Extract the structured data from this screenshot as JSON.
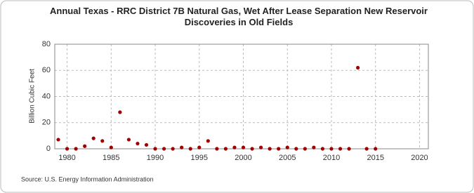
{
  "chart_data": {
    "type": "scatter",
    "title": "Annual Texas - RRC District 7B Natural Gas, Wet After Lease Separation New Reservoir Discoveries in Old Fields",
    "y_label": "Billion Cubic Feet",
    "source": "Source: U.S. Energy Information Administration",
    "x": [
      1979,
      1980,
      1981,
      1982,
      1983,
      1984,
      1985,
      1986,
      1987,
      1988,
      1989,
      1990,
      1991,
      1992,
      1993,
      1994,
      1995,
      1996,
      1997,
      1998,
      1999,
      2000,
      2001,
      2002,
      2003,
      2004,
      2005,
      2006,
      2007,
      2008,
      2009,
      2010,
      2011,
      2012,
      2013,
      2014,
      2015
    ],
    "values": [
      7,
      0,
      0,
      2,
      8,
      6,
      1,
      28,
      7,
      4,
      3,
      0,
      0,
      0,
      1,
      0,
      1,
      6,
      0,
      0,
      1,
      1,
      0,
      1,
      0,
      0,
      1,
      0,
      0,
      1,
      0,
      0,
      0,
      0,
      62,
      0,
      0
    ],
    "color": "#a00000",
    "xlim": [
      1978.6,
      2021
    ],
    "xticks": [
      1980,
      1985,
      1990,
      1995,
      2000,
      2005,
      2010,
      2015,
      2020
    ],
    "ylim": [
      0,
      80
    ],
    "yticks": [
      0,
      20,
      40,
      60,
      80
    ],
    "grid": true
  }
}
